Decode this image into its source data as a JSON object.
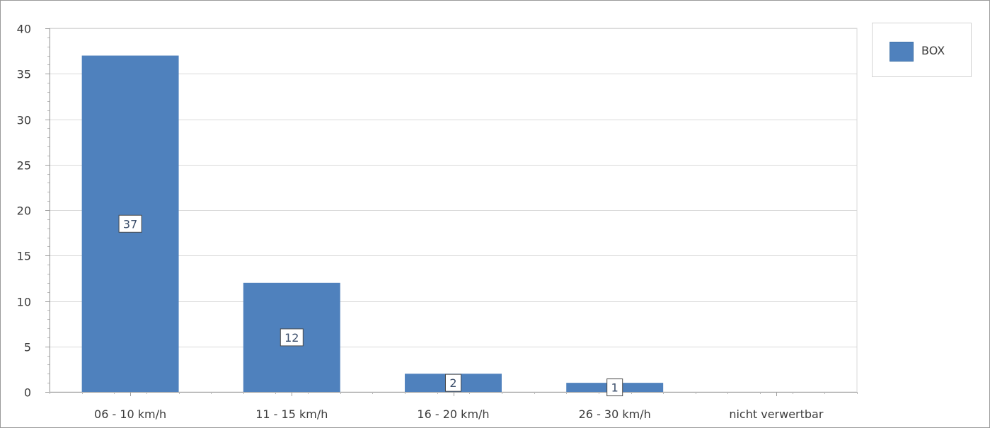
{
  "chart_data": {
    "type": "bar",
    "categories": [
      "06 - 10 km/h",
      "11 - 15 km/h",
      "16 - 20 km/h",
      "26 - 30 km/h",
      "nicht verwertbar"
    ],
    "series": [
      {
        "name": "BOX",
        "values": [
          37,
          12,
          2,
          1,
          0
        ],
        "color": "#4f81bd"
      }
    ],
    "data_labels": [
      "37",
      "12",
      "2",
      "1",
      ""
    ],
    "ylim": [
      0,
      40
    ],
    "yticks": [
      0,
      5,
      10,
      15,
      20,
      25,
      30,
      35,
      40
    ],
    "ytick_labels": [
      "0",
      "5",
      "10",
      "15",
      "20",
      "25",
      "30",
      "35",
      "40"
    ],
    "title": "",
    "xlabel": "",
    "ylabel": "",
    "grid": true,
    "legend_position": "top-right"
  },
  "legend": {
    "label": "BOX",
    "color": "#4f81bd"
  }
}
